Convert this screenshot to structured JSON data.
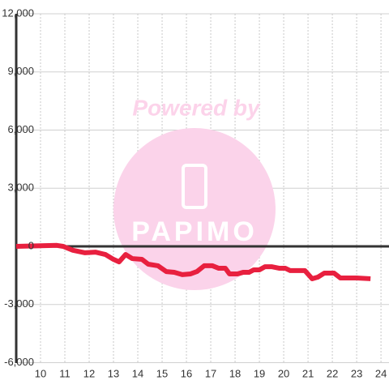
{
  "chart_data": {
    "type": "line",
    "annotations": [
      "Powered by",
      "PAPIMO"
    ],
    "x": [
      9.0,
      10.67,
      10.93,
      11.33,
      11.83,
      12.27,
      12.67,
      13.0,
      13.23,
      13.5,
      13.77,
      14.17,
      14.43,
      14.83,
      15.17,
      15.5,
      15.83,
      16.17,
      16.43,
      16.73,
      17.07,
      17.33,
      17.6,
      17.77,
      18.1,
      18.33,
      18.57,
      18.77,
      19.0,
      19.23,
      19.5,
      19.83,
      20.07,
      20.27,
      20.87,
      21.17,
      21.4,
      21.67,
      22.07,
      22.33,
      23.0,
      23.57
    ],
    "series": [
      {
        "color": "#e8203f",
        "values": [
          0,
          50,
          0,
          -200,
          -330,
          -300,
          -420,
          -670,
          -800,
          -420,
          -630,
          -670,
          -920,
          -1000,
          -1300,
          -1340,
          -1460,
          -1420,
          -1300,
          -1000,
          -1000,
          -1130,
          -1130,
          -1420,
          -1420,
          -1340,
          -1340,
          -1210,
          -1210,
          -1050,
          -1050,
          -1130,
          -1130,
          -1250,
          -1250,
          -1670,
          -1590,
          -1380,
          -1380,
          -1630,
          -1630,
          -1670
        ]
      }
    ],
    "xlim": [
      9,
      24.33
    ],
    "xticks": [
      10,
      11,
      12,
      13,
      14,
      15,
      16,
      17,
      18,
      19,
      20,
      21,
      22,
      23,
      24
    ],
    "ylim": [
      -6000,
      12000
    ],
    "yticks": [
      {
        "value": -6000,
        "label": "-6,000"
      },
      {
        "value": -3000,
        "label": "-3,000"
      },
      0,
      {
        "value": 3000,
        "label": "3,000"
      },
      {
        "value": 6000,
        "label": "6,000"
      },
      {
        "value": 9000,
        "label": "9,000"
      },
      {
        "value": 12000,
        "label": "12,000"
      }
    ],
    "grid": true
  }
}
